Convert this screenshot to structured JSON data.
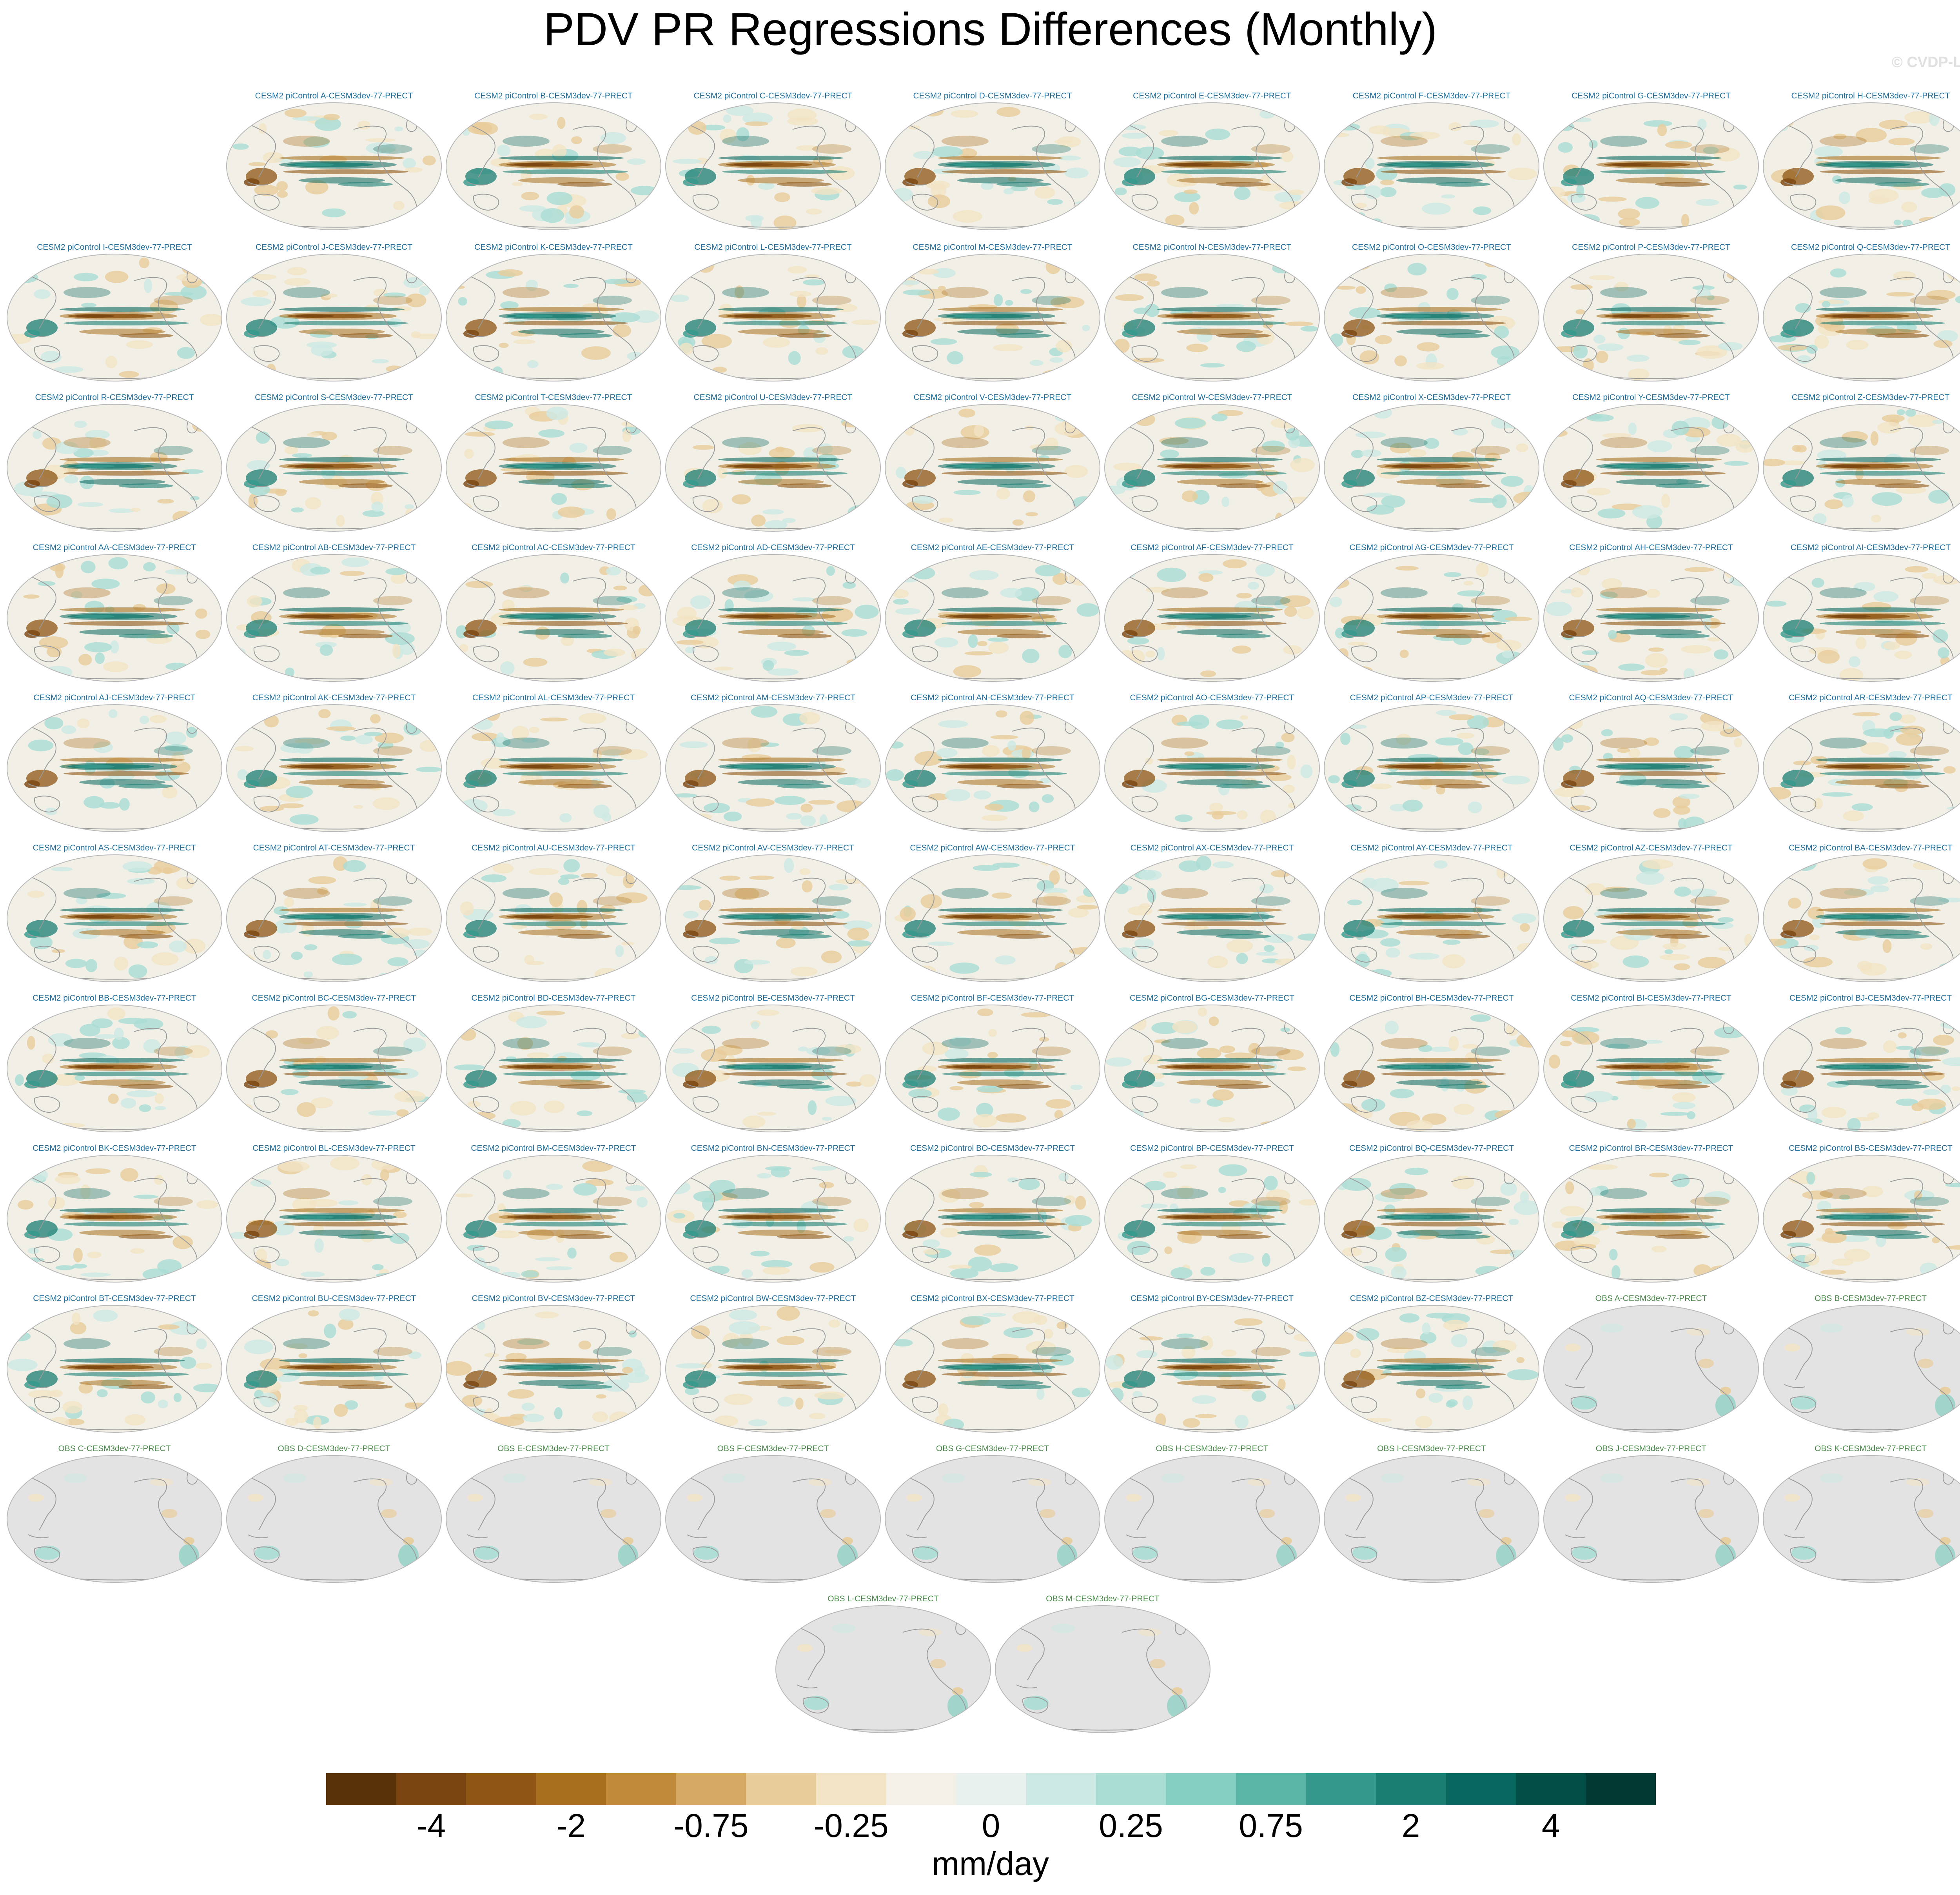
{
  "title": "PDV PR Regressions Differences (Monthly)",
  "watermark": "© CVDP-LE",
  "chart_data": {
    "type": "heatmap",
    "title": "PDV PR Regressions Differences (Monthly)",
    "panel_suffix": "-CESM3dev-77-PRECT",
    "panels": [
      {
        "title": "CESM2 piControl A-CESM3dev-77-PRECT",
        "kind": "cesm"
      },
      {
        "title": "CESM2 piControl B-CESM3dev-77-PRECT",
        "kind": "cesm"
      },
      {
        "title": "CESM2 piControl C-CESM3dev-77-PRECT",
        "kind": "cesm"
      },
      {
        "title": "CESM2 piControl D-CESM3dev-77-PRECT",
        "kind": "cesm"
      },
      {
        "title": "CESM2 piControl E-CESM3dev-77-PRECT",
        "kind": "cesm"
      },
      {
        "title": "CESM2 piControl F-CESM3dev-77-PRECT",
        "kind": "cesm"
      },
      {
        "title": "CESM2 piControl G-CESM3dev-77-PRECT",
        "kind": "cesm"
      },
      {
        "title": "CESM2 piControl H-CESM3dev-77-PRECT",
        "kind": "cesm"
      },
      {
        "title": "CESM2 piControl I-CESM3dev-77-PRECT",
        "kind": "cesm"
      },
      {
        "title": "CESM2 piControl J-CESM3dev-77-PRECT",
        "kind": "cesm"
      },
      {
        "title": "CESM2 piControl K-CESM3dev-77-PRECT",
        "kind": "cesm"
      },
      {
        "title": "CESM2 piControl L-CESM3dev-77-PRECT",
        "kind": "cesm"
      },
      {
        "title": "CESM2 piControl M-CESM3dev-77-PRECT",
        "kind": "cesm"
      },
      {
        "title": "CESM2 piControl N-CESM3dev-77-PRECT",
        "kind": "cesm"
      },
      {
        "title": "CESM2 piControl O-CESM3dev-77-PRECT",
        "kind": "cesm"
      },
      {
        "title": "CESM2 piControl P-CESM3dev-77-PRECT",
        "kind": "cesm"
      },
      {
        "title": "CESM2 piControl Q-CESM3dev-77-PRECT",
        "kind": "cesm"
      },
      {
        "title": "CESM2 piControl R-CESM3dev-77-PRECT",
        "kind": "cesm"
      },
      {
        "title": "CESM2 piControl S-CESM3dev-77-PRECT",
        "kind": "cesm"
      },
      {
        "title": "CESM2 piControl T-CESM3dev-77-PRECT",
        "kind": "cesm"
      },
      {
        "title": "CESM2 piControl U-CESM3dev-77-PRECT",
        "kind": "cesm"
      },
      {
        "title": "CESM2 piControl V-CESM3dev-77-PRECT",
        "kind": "cesm"
      },
      {
        "title": "CESM2 piControl W-CESM3dev-77-PRECT",
        "kind": "cesm"
      },
      {
        "title": "CESM2 piControl X-CESM3dev-77-PRECT",
        "kind": "cesm"
      },
      {
        "title": "CESM2 piControl Y-CESM3dev-77-PRECT",
        "kind": "cesm"
      },
      {
        "title": "CESM2 piControl Z-CESM3dev-77-PRECT",
        "kind": "cesm"
      },
      {
        "title": "CESM2 piControl AA-CESM3dev-77-PRECT",
        "kind": "cesm"
      },
      {
        "title": "CESM2 piControl AB-CESM3dev-77-PRECT",
        "kind": "cesm"
      },
      {
        "title": "CESM2 piControl AC-CESM3dev-77-PRECT",
        "kind": "cesm"
      },
      {
        "title": "CESM2 piControl AD-CESM3dev-77-PRECT",
        "kind": "cesm"
      },
      {
        "title": "CESM2 piControl AE-CESM3dev-77-PRECT",
        "kind": "cesm"
      },
      {
        "title": "CESM2 piControl AF-CESM3dev-77-PRECT",
        "kind": "cesm"
      },
      {
        "title": "CESM2 piControl AG-CESM3dev-77-PRECT",
        "kind": "cesm"
      },
      {
        "title": "CESM2 piControl AH-CESM3dev-77-PRECT",
        "kind": "cesm"
      },
      {
        "title": "CESM2 piControl AI-CESM3dev-77-PRECT",
        "kind": "cesm"
      },
      {
        "title": "CESM2 piControl AJ-CESM3dev-77-PRECT",
        "kind": "cesm"
      },
      {
        "title": "CESM2 piControl AK-CESM3dev-77-PRECT",
        "kind": "cesm"
      },
      {
        "title": "CESM2 piControl AL-CESM3dev-77-PRECT",
        "kind": "cesm"
      },
      {
        "title": "CESM2 piControl AM-CESM3dev-77-PRECT",
        "kind": "cesm"
      },
      {
        "title": "CESM2 piControl AN-CESM3dev-77-PRECT",
        "kind": "cesm"
      },
      {
        "title": "CESM2 piControl AO-CESM3dev-77-PRECT",
        "kind": "cesm"
      },
      {
        "title": "CESM2 piControl AP-CESM3dev-77-PRECT",
        "kind": "cesm"
      },
      {
        "title": "CESM2 piControl AQ-CESM3dev-77-PRECT",
        "kind": "cesm"
      },
      {
        "title": "CESM2 piControl AR-CESM3dev-77-PRECT",
        "kind": "cesm"
      },
      {
        "title": "CESM2 piControl AS-CESM3dev-77-PRECT",
        "kind": "cesm"
      },
      {
        "title": "CESM2 piControl AT-CESM3dev-77-PRECT",
        "kind": "cesm"
      },
      {
        "title": "CESM2 piControl AU-CESM3dev-77-PRECT",
        "kind": "cesm"
      },
      {
        "title": "CESM2 piControl AV-CESM3dev-77-PRECT",
        "kind": "cesm"
      },
      {
        "title": "CESM2 piControl AW-CESM3dev-77-PRECT",
        "kind": "cesm"
      },
      {
        "title": "CESM2 piControl AX-CESM3dev-77-PRECT",
        "kind": "cesm"
      },
      {
        "title": "CESM2 piControl AY-CESM3dev-77-PRECT",
        "kind": "cesm"
      },
      {
        "title": "CESM2 piControl AZ-CESM3dev-77-PRECT",
        "kind": "cesm"
      },
      {
        "title": "CESM2 piControl BA-CESM3dev-77-PRECT",
        "kind": "cesm"
      },
      {
        "title": "CESM2 piControl BB-CESM3dev-77-PRECT",
        "kind": "cesm"
      },
      {
        "title": "CESM2 piControl BC-CESM3dev-77-PRECT",
        "kind": "cesm"
      },
      {
        "title": "CESM2 piControl BD-CESM3dev-77-PRECT",
        "kind": "cesm"
      },
      {
        "title": "CESM2 piControl BE-CESM3dev-77-PRECT",
        "kind": "cesm"
      },
      {
        "title": "CESM2 piControl BF-CESM3dev-77-PRECT",
        "kind": "cesm"
      },
      {
        "title": "CESM2 piControl BG-CESM3dev-77-PRECT",
        "kind": "cesm"
      },
      {
        "title": "CESM2 piControl BH-CESM3dev-77-PRECT",
        "kind": "cesm"
      },
      {
        "title": "CESM2 piControl BI-CESM3dev-77-PRECT",
        "kind": "cesm"
      },
      {
        "title": "CESM2 piControl BJ-CESM3dev-77-PRECT",
        "kind": "cesm"
      },
      {
        "title": "CESM2 piControl BK-CESM3dev-77-PRECT",
        "kind": "cesm"
      },
      {
        "title": "CESM2 piControl BL-CESM3dev-77-PRECT",
        "kind": "cesm"
      },
      {
        "title": "CESM2 piControl BM-CESM3dev-77-PRECT",
        "kind": "cesm"
      },
      {
        "title": "CESM2 piControl BN-CESM3dev-77-PRECT",
        "kind": "cesm"
      },
      {
        "title": "CESM2 piControl BO-CESM3dev-77-PRECT",
        "kind": "cesm"
      },
      {
        "title": "CESM2 piControl BP-CESM3dev-77-PRECT",
        "kind": "cesm"
      },
      {
        "title": "CESM2 piControl BQ-CESM3dev-77-PRECT",
        "kind": "cesm"
      },
      {
        "title": "CESM2 piControl BR-CESM3dev-77-PRECT",
        "kind": "cesm"
      },
      {
        "title": "CESM2 piControl BS-CESM3dev-77-PRECT",
        "kind": "cesm"
      },
      {
        "title": "CESM2 piControl BT-CESM3dev-77-PRECT",
        "kind": "cesm"
      },
      {
        "title": "CESM2 piControl BU-CESM3dev-77-PRECT",
        "kind": "cesm"
      },
      {
        "title": "CESM2 piControl BV-CESM3dev-77-PRECT",
        "kind": "cesm"
      },
      {
        "title": "CESM2 piControl BW-CESM3dev-77-PRECT",
        "kind": "cesm"
      },
      {
        "title": "CESM2 piControl BX-CESM3dev-77-PRECT",
        "kind": "cesm"
      },
      {
        "title": "CESM2 piControl BY-CESM3dev-77-PRECT",
        "kind": "cesm"
      },
      {
        "title": "CESM2 piControl BZ-CESM3dev-77-PRECT",
        "kind": "cesm"
      },
      {
        "title": "OBS A-CESM3dev-77-PRECT",
        "kind": "obs"
      },
      {
        "title": "OBS B-CESM3dev-77-PRECT",
        "kind": "obs"
      },
      {
        "title": "OBS C-CESM3dev-77-PRECT",
        "kind": "obs"
      },
      {
        "title": "OBS D-CESM3dev-77-PRECT",
        "kind": "obs"
      },
      {
        "title": "OBS E-CESM3dev-77-PRECT",
        "kind": "obs"
      },
      {
        "title": "OBS F-CESM3dev-77-PRECT",
        "kind": "obs"
      },
      {
        "title": "OBS G-CESM3dev-77-PRECT",
        "kind": "obs"
      },
      {
        "title": "OBS H-CESM3dev-77-PRECT",
        "kind": "obs"
      },
      {
        "title": "OBS I-CESM3dev-77-PRECT",
        "kind": "obs"
      },
      {
        "title": "OBS J-CESM3dev-77-PRECT",
        "kind": "obs"
      },
      {
        "title": "OBS K-CESM3dev-77-PRECT",
        "kind": "obs"
      },
      {
        "title": "OBS L-CESM3dev-77-PRECT",
        "kind": "obs"
      },
      {
        "title": "OBS M-CESM3dev-77-PRECT",
        "kind": "obs"
      }
    ],
    "colorbar": {
      "units": "mm/day",
      "labels": [
        "-4",
        "-2",
        "-0.75",
        "-0.25",
        "0",
        "0.25",
        "0.75",
        "2",
        "4"
      ],
      "colors": [
        "#5a3208",
        "#7a4510",
        "#8e5513",
        "#a8701e",
        "#c08a3a",
        "#d6aa62",
        "#e8cc9a",
        "#f2e4c4",
        "#f4f0e8",
        "#e8f1ee",
        "#cde9e3",
        "#a9ddd4",
        "#84cfc2",
        "#5bb6a7",
        "#35988c",
        "#1b7e73",
        "#08675e",
        "#024f47",
        "#013a33"
      ]
    },
    "colors": {
      "cesm_title": "#1f6e9c",
      "obs_title": "#4d8a4d",
      "ocean_cesm": "#f1efe6",
      "ocean_obs": "#e3e3e3",
      "coastline": "#9a9a9a"
    }
  }
}
